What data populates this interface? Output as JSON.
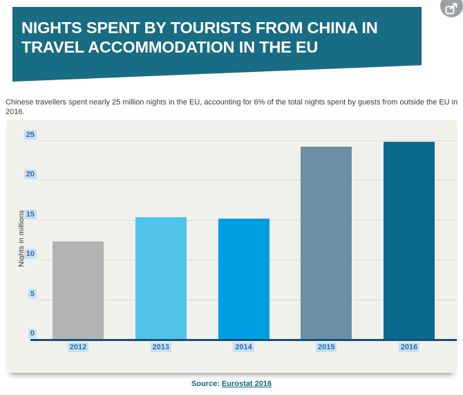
{
  "header": {
    "title_line1": "NIGHTS SPENT BY TOURISTS FROM CHINA IN",
    "title_line2": "TRAVEL ACCOMMODATION IN THE EU",
    "banner_color": "#186c83",
    "title_color": "#ffffff"
  },
  "share": {
    "icon": "export-image-icon",
    "circle_color": "#9ba0a3"
  },
  "intro": "Chinese travellers spent nearly 25 million nights in the EU, accounting for 6% of the total nights spent by guests from outside the EU in 2016.",
  "chart_data": {
    "type": "bar",
    "title": "Nights spent by tourists from China in travel accommodation in the EU",
    "categories": [
      "2012",
      "2013",
      "2014",
      "2015",
      "2016"
    ],
    "values": [
      12.3,
      15.3,
      15.2,
      24.2,
      24.8
    ],
    "bar_colors": [
      "#b3b3b3",
      "#4fc3e8",
      "#009ee2",
      "#6b90a5",
      "#0a6a8e"
    ],
    "xlabel": "",
    "ylabel": "Nights in millions",
    "yticks": [
      0,
      5,
      10,
      15,
      20,
      25
    ],
    "ylim": [
      0,
      25
    ],
    "grid": true,
    "legend": false,
    "plot_bg": "#f1f1ec",
    "gridline_color": "#dcdbd1",
    "axis_color": "#174e79",
    "tick_label_color": "#2470ae",
    "tick_label_highlight": "#c9e0f4"
  },
  "source": {
    "prefix": "Source: ",
    "link": "Eurostat 2016",
    "color": "#0d6384"
  }
}
